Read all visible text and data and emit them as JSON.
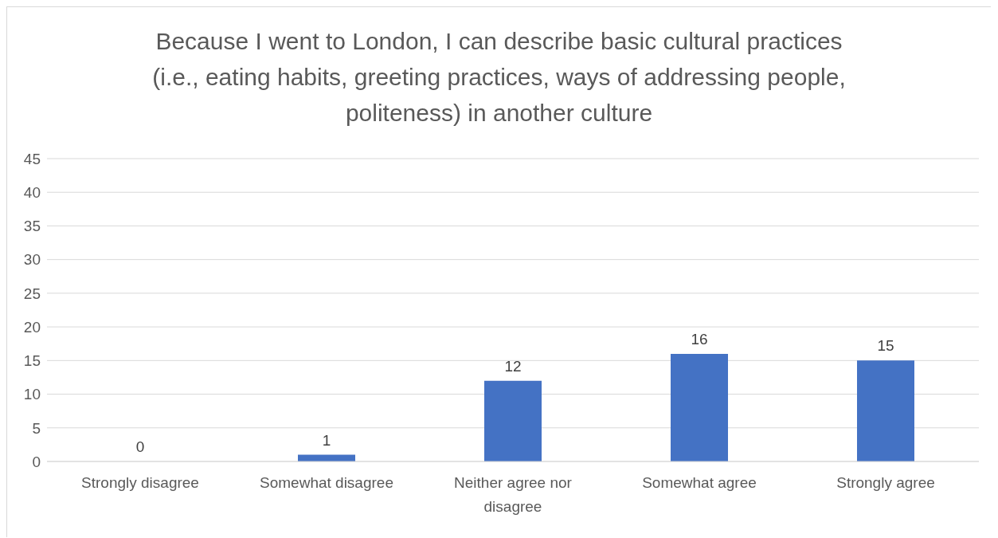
{
  "chart_data": {
    "type": "bar",
    "title": "Because I went to London, I can describe basic cultural practices (i.e., eating habits, greeting practices, ways of addressing people, politeness) in another culture",
    "categories": [
      "Strongly disagree",
      "Somewhat disagree",
      "Neither agree nor disagree",
      "Somewhat agree",
      "Strongly agree"
    ],
    "values": [
      0,
      1,
      12,
      16,
      15
    ],
    "color": "#4472c4",
    "ylim": [
      0,
      45
    ],
    "yticks": [
      0,
      5,
      10,
      15,
      20,
      25,
      30,
      35,
      40,
      45
    ],
    "grid": "y",
    "data_labels": true
  }
}
